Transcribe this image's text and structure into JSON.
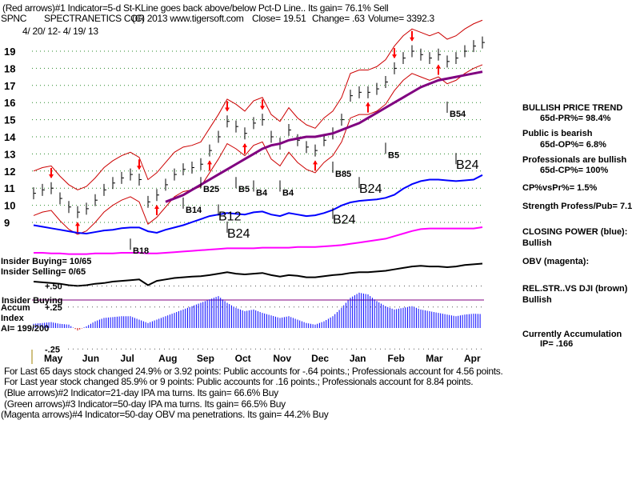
{
  "header": {
    "indicator1": "(Red arrows)#1 Indicator=5-d St-KLine goes back above/below Pct-D Line.. Its gain= 76.1% Sell",
    "ticker": "SPNC",
    "company": "SPECTRANETICS COR",
    "copyright": "(C) 2013 www.tigersoft.com",
    "close": "Close=  19.51",
    "change": "Change= .63",
    "volume": "Volume= 3392.3",
    "date_range": "4/ 20/ 12- 4/ 19/ 13"
  },
  "left_labels": {
    "insider_buying": "Insider Buying= 10/65",
    "insider_selling": "Insider Selling= 0/65",
    "insider_buying2": "Insider Buying",
    "accum": "Accum",
    "index": "Index",
    "ai": "AI= 199/200"
  },
  "right_panel": {
    "trend": "BULLISH PRICE TREND",
    "pr": "65d-PR%= 98.4%",
    "public": "Public is bearish",
    "op": "65d-OP%= 6.8%",
    "pros": "Professionals are bullish",
    "cp": "65d-CP%= 100%",
    "cpvspr": "CP%vsPr%=  1.5%",
    "strength": "Strength Profess/Pub= 7.1",
    "closing_power": "CLOSING POWER (blue):",
    "closing_power_state": "Bullish",
    "obv": "OBV (magenta):",
    "relstr": "REL.STR..VS DJI (brown)",
    "relstr_state": "Bullish",
    "accum": "Currently Accumulation",
    "ip": "IP=  .166"
  },
  "footer": {
    "line1": "For Last 65 days stock changed  24.9% or  3.92 points:  Public accounts for -.64 points.;  Professionals account for  4.56 points.",
    "line2": "For Last year stock changed  85.9% or  9 points:  Public accounts for  .16 points.;  Professionals account for  8.84 points.",
    "line3": "(Blue arrows)#2 Indicator=21-day IPA ma turns. Its gain= 66.6% Buy",
    "line4": "(Green arrows)#3 Indicator=50-day IPA ma turns. Its gain= 66.5% Buy",
    "line5": "(Magenta arrows)#4 Indicator=50-day OBV ma penetrations. Its gain= 44.2% Buy"
  },
  "chart_data": {
    "type": "line",
    "title": "SPNC SPECTRANETICS COR",
    "x_ticks": [
      "May",
      "Jun",
      "Jul",
      "Aug",
      "Sep",
      "Oct",
      "Nov",
      "Dec",
      "Jan",
      "Feb",
      "Mar",
      "Apr"
    ],
    "price_ticks": [
      "19",
      "18",
      "17",
      "16",
      "15",
      "14",
      "13",
      "12",
      "11",
      "10",
      "9"
    ],
    "price_range": [
      9,
      19
    ],
    "ai_ticks": [
      "+.50",
      "+.25",
      "-.25"
    ],
    "ai_range": [
      -0.25,
      0.5
    ],
    "series": [
      {
        "name": "Price (weekly close)",
        "color": "#000000",
        "values": [
          10.7,
          10.9,
          11.0,
          10.4,
          9.9,
          9.6,
          9.8,
          10.3,
          10.9,
          11.3,
          11.6,
          11.8,
          11.5,
          10.2,
          10.6,
          11.2,
          11.8,
          12.1,
          12.2,
          12.4,
          13.2,
          14.0,
          14.9,
          14.6,
          14.2,
          14.8,
          15.0,
          14.0,
          13.6,
          14.4,
          13.8,
          13.4,
          13.2,
          13.8,
          14.2,
          15.0,
          16.4,
          16.6,
          16.6,
          16.8,
          17.2,
          18.0,
          18.6,
          19.0,
          18.8,
          18.6,
          18.8,
          18.4,
          18.6,
          19.0,
          19.3,
          19.51
        ]
      },
      {
        "name": "50-day MA",
        "color": "#800080",
        "values": [
          null,
          null,
          null,
          null,
          null,
          null,
          null,
          null,
          null,
          null,
          null,
          null,
          null,
          null,
          null,
          10.2,
          10.4,
          10.6,
          10.9,
          11.2,
          11.5,
          11.8,
          12.1,
          12.4,
          12.7,
          13.0,
          13.3,
          13.5,
          13.6,
          13.8,
          13.9,
          14.0,
          14.0,
          14.1,
          14.2,
          14.4,
          14.6,
          14.8,
          15.1,
          15.4,
          15.7,
          16.0,
          16.3,
          16.6,
          16.9,
          17.1,
          17.3,
          17.4,
          17.5,
          17.6,
          17.7,
          17.8
        ]
      },
      {
        "name": "Closing Power",
        "color": "#0000ff",
        "values": [
          30,
          28,
          26,
          24,
          22,
          20,
          19,
          21,
          23,
          24,
          26,
          27,
          27,
          22,
          20,
          24,
          27,
          30,
          34,
          38,
          42,
          44,
          46,
          45,
          44,
          47,
          48,
          44,
          42,
          46,
          44,
          42,
          43,
          46,
          50,
          56,
          60,
          62,
          63,
          64,
          66,
          70,
          78,
          84,
          88,
          90,
          90,
          89,
          88,
          89,
          90,
          96
        ]
      },
      {
        "name": "OBV",
        "color": "#ff00ff",
        "values": [
          20,
          20,
          19,
          19,
          18,
          18,
          18,
          19,
          19,
          19,
          20,
          20,
          20,
          19,
          19,
          20,
          21,
          22,
          23,
          24,
          25,
          26,
          27,
          27,
          27,
          27,
          28,
          28,
          28,
          28,
          29,
          29,
          29,
          30,
          31,
          32,
          34,
          36,
          38,
          40,
          42,
          46,
          50,
          54,
          57,
          58,
          58,
          58,
          58,
          58,
          58,
          60
        ]
      },
      {
        "name": "Relative Strength",
        "color": "#000000",
        "values": [
          40,
          38,
          36,
          34,
          30,
          28,
          30,
          34,
          36,
          40,
          42,
          44,
          46,
          30,
          42,
          46,
          50,
          52,
          54,
          55,
          58,
          62,
          66,
          62,
          60,
          62,
          64,
          58,
          54,
          58,
          56,
          52,
          52,
          55,
          58,
          60,
          64,
          66,
          66,
          68,
          70,
          74,
          78,
          82,
          84,
          82,
          82,
          80,
          82,
          86,
          88,
          90
        ]
      },
      {
        "name": "Accumulation Index",
        "color": "#0000ff",
        "values": [
          0.05,
          0.06,
          0.07,
          0.05,
          0.04,
          -0.03,
          0.02,
          0.08,
          0.12,
          0.13,
          0.14,
          0.14,
          0.1,
          0.06,
          0.1,
          0.14,
          0.18,
          0.22,
          0.26,
          0.3,
          0.34,
          0.38,
          0.3,
          0.24,
          0.2,
          0.22,
          0.18,
          0.15,
          0.12,
          0.14,
          0.1,
          0.06,
          0.04,
          0.08,
          0.14,
          0.24,
          0.36,
          0.42,
          0.4,
          0.32,
          0.26,
          0.22,
          0.24,
          0.26,
          0.22,
          0.2,
          0.18,
          0.16,
          0.14,
          0.16,
          0.17,
          0.166
        ]
      }
    ],
    "annotations": [
      {
        "label": "B18",
        "week": 11,
        "price": 7.4
      },
      {
        "label": "B14",
        "week": 17,
        "price": 9.8
      },
      {
        "label": "B12",
        "week": 21,
        "price": 9.4
      },
      {
        "label": "B25",
        "week": 19,
        "price": 11.0
      },
      {
        "label": "B5",
        "week": 23,
        "price": 11.0
      },
      {
        "label": "B4",
        "week": 25,
        "price": 10.8
      },
      {
        "label": "B4",
        "week": 28,
        "price": 10.8
      },
      {
        "label": "B24",
        "week": 22,
        "price": 8.4
      },
      {
        "label": "B85",
        "week": 34,
        "price": 11.9
      },
      {
        "label": "B24",
        "week": 34,
        "price": 9.2
      },
      {
        "label": "B24",
        "week": 37,
        "price": 11.0
      },
      {
        "label": "B5",
        "week": 40,
        "price": 13.0
      },
      {
        "label": "B54",
        "week": 47,
        "price": 15.4
      },
      {
        "label": "B24",
        "week": 48,
        "price": 12.4
      }
    ]
  }
}
